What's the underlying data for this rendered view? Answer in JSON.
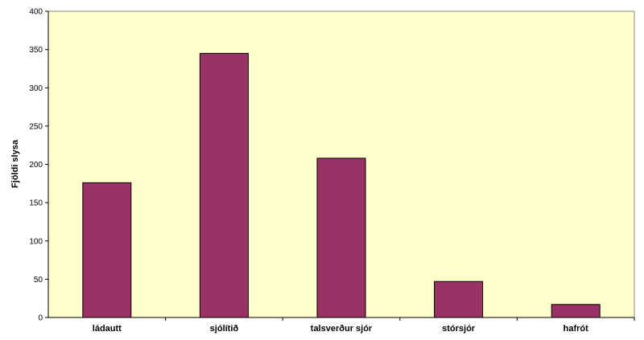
{
  "chart_data": {
    "type": "bar",
    "title": "",
    "xlabel": "",
    "ylabel": "Fjöldi slysa",
    "categories": [
      "ládautt",
      "sjólítið",
      "talsverður sjór",
      "stórsjór",
      "hafrót"
    ],
    "values": [
      176,
      345,
      208,
      47,
      17
    ],
    "ylim": [
      0,
      400
    ],
    "yticks": [
      0,
      50,
      100,
      150,
      200,
      250,
      300,
      350,
      400
    ],
    "grid": false,
    "legend": "none",
    "colors": {
      "bar": "#993366",
      "plot_background": "#FFFFCC",
      "axis": "#000000"
    }
  }
}
